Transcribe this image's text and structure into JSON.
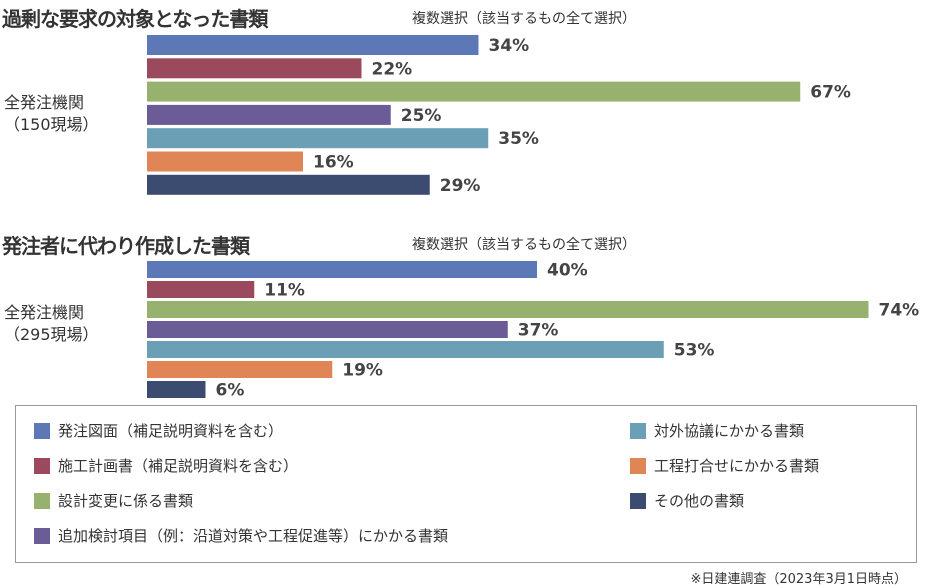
{
  "colors": [
    "#5d78b6",
    "#9a4a5c",
    "#97b26e",
    "#6b5b96",
    "#6b9fb5",
    "#e08556",
    "#3b4c70"
  ],
  "legend": [
    "発注図面（補足説明資料を含む）",
    "施工計画書（補足説明資料を含む）",
    "設計変更に係る書類",
    "追加検討項目（例：沿道対策や工程促進等）にかかる書類",
    "対外協議にかかる書類",
    "工程打合せにかかる書類",
    "その他の書類"
  ],
  "footnote": "※日建連調査（2023年3月1日時点）",
  "chart_data": [
    {
      "type": "bar",
      "orientation": "horizontal",
      "title": "過剰な要求の対象となった書類",
      "subtitle": "複数選択（該当するもの全て選択）",
      "group_label": [
        "全発注機関",
        "（150現場）"
      ],
      "categories": [
        "発注図面（補足説明資料を含む）",
        "施工計画書（補足説明資料を含む）",
        "設計変更に係る書類",
        "追加検討項目（例：沿道対策や工程促進等）にかかる書類",
        "対外協議にかかる書類",
        "工程打合せにかかる書類",
        "その他の書類"
      ],
      "values": [
        34,
        22,
        67,
        25,
        35,
        16,
        29
      ],
      "unit": "%",
      "xlim": [
        0,
        100
      ],
      "grid": false,
      "legend": "bottom"
    },
    {
      "type": "bar",
      "orientation": "horizontal",
      "title": "発注者に代わり作成した書類",
      "subtitle": "複数選択（該当するもの全て選択）",
      "group_label": [
        "全発注機関",
        "（295現場）"
      ],
      "categories": [
        "発注図面（補足説明資料を含む）",
        "施工計画書（補足説明資料を含む）",
        "設計変更に係る書類",
        "追加検討項目（例：沿道対策や工程促進等）にかかる書類",
        "対外協議にかかる書類",
        "工程打合せにかかる書類",
        "その他の書類"
      ],
      "values": [
        40,
        11,
        74,
        37,
        53,
        19,
        6
      ],
      "unit": "%",
      "xlim": [
        0,
        100
      ],
      "grid": false,
      "legend": "bottom"
    }
  ]
}
